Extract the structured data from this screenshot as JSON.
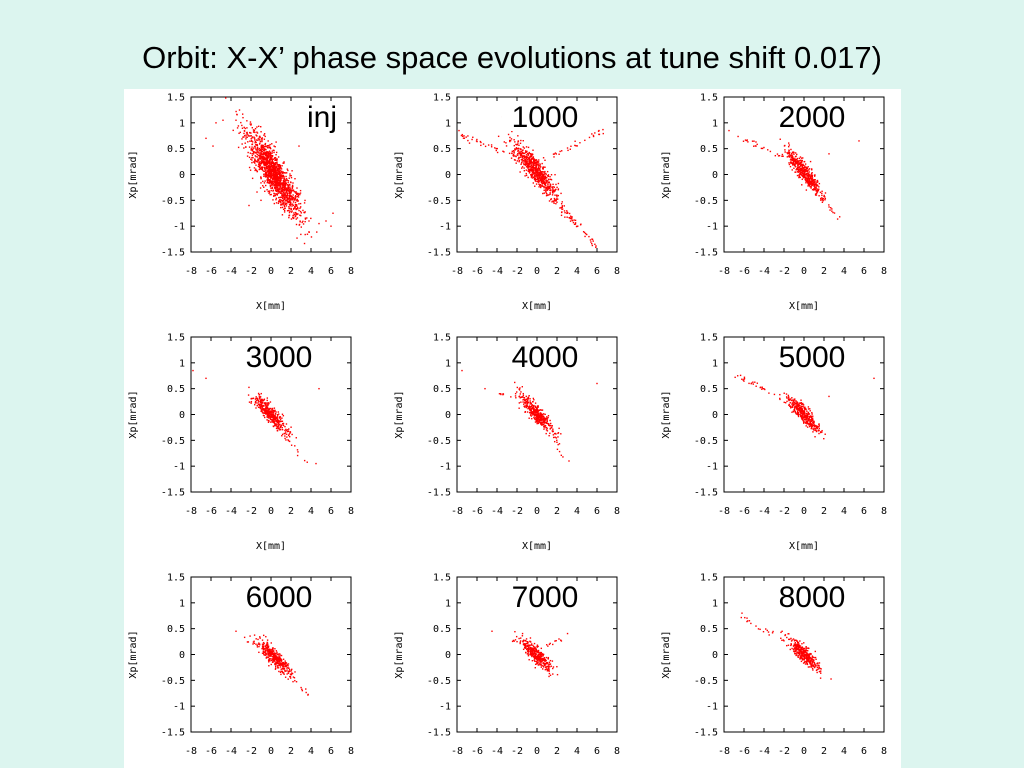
{
  "slide": {
    "title": "Orbit: X-X’ phase space evolutions at tune shift 0.017)"
  },
  "colors": {
    "background": "#dcf5ef",
    "panel": "#ffffff",
    "points": "#ff0000"
  },
  "chart_data": [
    {
      "type": "scatter",
      "label": "inj",
      "xlabel": "X[mm]",
      "ylabel": "Xp[mrad]",
      "xlim": [
        -8,
        8
      ],
      "ylim": [
        -1.5,
        1.5
      ],
      "xticks": [
        "-8",
        "-6",
        "-4",
        "-2",
        "0",
        "2",
        "4",
        "6",
        "8"
      ],
      "yticks": [
        "1.5",
        "1",
        "0.5",
        "0",
        "-0.5",
        "-1",
        "-1.5"
      ],
      "core": {
        "cx": 0.3,
        "cy": 0.0,
        "major": 3.5,
        "minor": 0.9,
        "angle": -0.62,
        "count": 1400
      },
      "outliers": [
        [
          -5.5,
          1.0
        ],
        [
          -4.8,
          1.05
        ],
        [
          -3.5,
          1.05
        ],
        [
          -5.8,
          0.55
        ],
        [
          5.5,
          -0.9
        ],
        [
          6.0,
          -1.0
        ],
        [
          6.2,
          -0.75
        ],
        [
          4.8,
          -0.95
        ],
        [
          3.8,
          -0.9
        ],
        [
          -2.2,
          -0.6
        ],
        [
          -1.0,
          -0.5
        ],
        [
          2.8,
          0.55
        ],
        [
          -2.8,
          1.1
        ],
        [
          -6.5,
          0.7
        ]
      ],
      "grid": false,
      "legend": "none"
    },
    {
      "type": "scatter",
      "label": "1000",
      "xlabel": "X[mm]",
      "ylabel": "Xp[mrad]",
      "xlim": [
        -8,
        8
      ],
      "ylim": [
        -1.5,
        1.5
      ],
      "xticks": [
        "-8",
        "-6",
        "-4",
        "-2",
        "0",
        "2",
        "4",
        "6",
        "8"
      ],
      "yticks": [
        "1.5",
        "1",
        "0.5",
        "0",
        "-0.5",
        "-1",
        "-1.5"
      ],
      "core": {
        "cx": -0.2,
        "cy": 0.1,
        "major": 2.6,
        "minor": 0.6,
        "angle": -0.5,
        "count": 650
      },
      "tails": [
        {
          "from": [
            -7.5,
            0.75
          ],
          "to": [
            -1.5,
            0.3
          ],
          "count": 40
        },
        {
          "from": [
            1.0,
            -0.35
          ],
          "to": [
            6.0,
            -1.4
          ],
          "count": 70
        },
        {
          "from": [
            0.5,
            0.25
          ],
          "to": [
            6.5,
            0.85
          ],
          "count": 30
        }
      ],
      "outliers": [
        [
          -7.8,
          0.85
        ],
        [
          6.2,
          0.85
        ],
        [
          5.5,
          -1.25
        ]
      ],
      "grid": false,
      "legend": "none"
    },
    {
      "type": "scatter",
      "label": "2000",
      "xlabel": "X[mm]",
      "ylabel": "Xp[mrad]",
      "xlim": [
        -8,
        8
      ],
      "ylim": [
        -1.5,
        1.5
      ],
      "xticks": [
        "-8",
        "-6",
        "-4",
        "-2",
        "0",
        "2",
        "4",
        "6",
        "8"
      ],
      "yticks": [
        "1.5",
        "1",
        "0.5",
        "0",
        "-0.5",
        "-1",
        "-1.5"
      ],
      "core": {
        "cx": 0.0,
        "cy": 0.05,
        "major": 2.1,
        "minor": 0.45,
        "angle": -0.5,
        "count": 450
      },
      "tails": [
        {
          "from": [
            -6.5,
            0.75
          ],
          "to": [
            -1.2,
            0.25
          ],
          "count": 25
        },
        {
          "from": [
            1.2,
            -0.35
          ],
          "to": [
            3.5,
            -0.85
          ],
          "count": 20
        }
      ],
      "outliers": [
        [
          -7.5,
          0.85
        ],
        [
          5.5,
          0.65
        ],
        [
          2.5,
          0.4
        ],
        [
          -4.8,
          0.55
        ]
      ],
      "grid": false,
      "legend": "none"
    },
    {
      "type": "scatter",
      "label": "3000",
      "xlabel": "X[mm]",
      "ylabel": "Xp[mrad]",
      "xlim": [
        -8,
        8
      ],
      "ylim": [
        -1.5,
        1.5
      ],
      "xticks": [
        "-8",
        "-6",
        "-4",
        "-2",
        "0",
        "2",
        "4",
        "6",
        "8"
      ],
      "yticks": [
        "1.5",
        "1",
        "0.5",
        "0",
        "-0.5",
        "-1",
        "-1.5"
      ],
      "core": {
        "cx": 0.0,
        "cy": 0.0,
        "major": 2.0,
        "minor": 0.4,
        "angle": -0.45,
        "count": 380
      },
      "tails": [
        {
          "from": [
            -2.5,
            0.25
          ],
          "to": [
            -1.0,
            0.15
          ],
          "count": 6
        },
        {
          "from": [
            1.5,
            -0.4
          ],
          "to": [
            3.5,
            -0.95
          ],
          "count": 10
        }
      ],
      "outliers": [
        [
          -7.8,
          0.85
        ],
        [
          -6.5,
          0.7
        ],
        [
          4.8,
          0.5
        ],
        [
          4.5,
          -0.95
        ]
      ],
      "grid": false,
      "legend": "none"
    },
    {
      "type": "scatter",
      "label": "4000",
      "xlabel": "X[mm]",
      "ylabel": "Xp[mrad]",
      "xlim": [
        -8,
        8
      ],
      "ylim": [
        -1.5,
        1.5
      ],
      "xticks": [
        "-8",
        "-6",
        "-4",
        "-2",
        "0",
        "2",
        "4",
        "6",
        "8"
      ],
      "yticks": [
        "1.5",
        "1",
        "0.5",
        "0",
        "-0.5",
        "-1",
        "-1.5"
      ],
      "core": {
        "cx": 0.0,
        "cy": 0.0,
        "major": 2.0,
        "minor": 0.4,
        "angle": -0.45,
        "count": 380
      },
      "tails": [
        {
          "from": [
            -4.0,
            0.45
          ],
          "to": [
            -1.2,
            0.2
          ],
          "count": 10
        },
        {
          "from": [
            1.5,
            -0.4
          ],
          "to": [
            3.0,
            -0.9
          ],
          "count": 8
        }
      ],
      "outliers": [
        [
          -7.5,
          0.85
        ],
        [
          6.0,
          0.6
        ],
        [
          3.2,
          -0.9
        ],
        [
          -5.2,
          0.5
        ]
      ],
      "grid": false,
      "legend": "none"
    },
    {
      "type": "scatter",
      "label": "5000",
      "xlabel": "X[mm]",
      "ylabel": "Xp[mrad]",
      "xlim": [
        -8,
        8
      ],
      "ylim": [
        -1.5,
        1.5
      ],
      "xticks": [
        "-8",
        "-6",
        "-4",
        "-2",
        "0",
        "2",
        "4",
        "6",
        "8"
      ],
      "yticks": [
        "1.5",
        "1",
        "0.5",
        "0",
        "-0.5",
        "-1",
        "-1.5"
      ],
      "core": {
        "cx": 0.0,
        "cy": 0.0,
        "major": 1.9,
        "minor": 0.38,
        "angle": -0.45,
        "count": 360
      },
      "tails": [
        {
          "from": [
            -7.2,
            0.8
          ],
          "to": [
            -1.2,
            0.2
          ],
          "count": 35
        },
        {
          "from": [
            1.2,
            -0.3
          ],
          "to": [
            2.2,
            -0.45
          ],
          "count": 6
        }
      ],
      "outliers": [
        [
          7.0,
          0.7
        ],
        [
          2.5,
          0.35
        ]
      ],
      "grid": false,
      "legend": "none"
    },
    {
      "type": "scatter",
      "label": "6000",
      "xlabel": "X[mm]",
      "ylabel": "Xp[mrad]",
      "xlim": [
        -8,
        8
      ],
      "ylim": [
        -1.5,
        1.5
      ],
      "xticks": [
        "-8",
        "-6",
        "-4",
        "-2",
        "0",
        "2",
        "4",
        "6",
        "8"
      ],
      "yticks": [
        "1.5",
        "1",
        "0.5",
        "0",
        "-0.5",
        "-1",
        "-1.5"
      ],
      "core": {
        "cx": 0.3,
        "cy": -0.05,
        "major": 2.0,
        "minor": 0.38,
        "angle": -0.42,
        "count": 380
      },
      "tails": [
        {
          "from": [
            -3.0,
            0.35
          ],
          "to": [
            -1.0,
            0.15
          ],
          "count": 8
        },
        {
          "from": [
            1.8,
            -0.35
          ],
          "to": [
            4.0,
            -0.85
          ],
          "count": 12
        }
      ],
      "outliers": [
        [
          -3.5,
          0.45
        ]
      ],
      "grid": false,
      "legend": "none"
    },
    {
      "type": "scatter",
      "label": "7000",
      "xlabel": "X[mm]",
      "ylabel": "Xp[mrad]",
      "xlim": [
        -8,
        8
      ],
      "ylim": [
        -1.5,
        1.5
      ],
      "xticks": [
        "-8",
        "-6",
        "-4",
        "-2",
        "0",
        "2",
        "4",
        "6",
        "8"
      ],
      "yticks": [
        "1.5",
        "1",
        "0.5",
        "0",
        "-0.5",
        "-1",
        "-1.5"
      ],
      "core": {
        "cx": 0.0,
        "cy": -0.02,
        "major": 1.8,
        "minor": 0.38,
        "angle": -0.4,
        "count": 360
      },
      "tails": [
        {
          "from": [
            -2.5,
            0.3
          ],
          "to": [
            -1.0,
            0.15
          ],
          "count": 6
        },
        {
          "from": [
            0.8,
            0.15
          ],
          "to": [
            3.5,
            0.45
          ],
          "count": 10
        }
      ],
      "outliers": [
        [
          -4.5,
          0.45
        ],
        [
          2.2,
          0.3
        ]
      ],
      "grid": false,
      "legend": "none"
    },
    {
      "type": "scatter",
      "label": "8000",
      "xlabel": "X[mm]",
      "ylabel": "Xp[mrad]",
      "xlim": [
        -8,
        8
      ],
      "ylim": [
        -1.5,
        1.5
      ],
      "xticks": [
        "-8",
        "-6",
        "-4",
        "-2",
        "0",
        "2",
        "4",
        "6",
        "8"
      ],
      "yticks": [
        "1.5",
        "1",
        "0.5",
        "0",
        "-0.5",
        "-1",
        "-1.5"
      ],
      "core": {
        "cx": 0.0,
        "cy": 0.0,
        "major": 1.8,
        "minor": 0.38,
        "angle": -0.4,
        "count": 360
      },
      "tails": [
        {
          "from": [
            -6.5,
            0.75
          ],
          "to": [
            -1.2,
            0.2
          ],
          "count": 20
        },
        {
          "from": [
            1.0,
            -0.2
          ],
          "to": [
            1.8,
            -0.3
          ],
          "count": 4
        }
      ],
      "outliers": [
        [
          -6.2,
          0.8
        ],
        [
          -4.8,
          0.55
        ]
      ],
      "grid": false,
      "legend": "none"
    }
  ]
}
